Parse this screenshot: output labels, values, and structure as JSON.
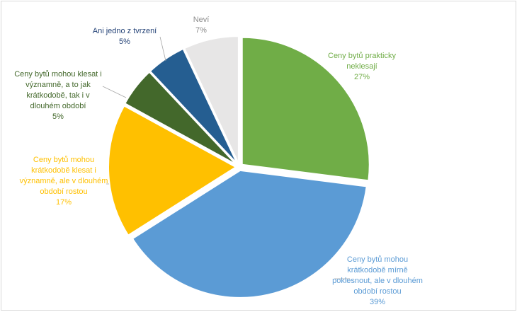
{
  "chart_data": {
    "type": "pie",
    "title": "",
    "slices": [
      {
        "label_lines": [
          "Ceny bytů prakticky",
          "neklesají"
        ],
        "pct_text": "27%",
        "value": 27,
        "color": "#70ad47",
        "label_color": "#70ad47"
      },
      {
        "label_lines": [
          "Ceny bytů mohou",
          "krátkodobě mírně",
          "poklesnout, ale v dlouhém",
          "období rostou"
        ],
        "pct_text": "39%",
        "value": 39,
        "color": "#5b9bd5",
        "label_color": "#5b9bd5"
      },
      {
        "label_lines": [
          "Ceny bytů mohou",
          "krátkodobě klesat i",
          "významně, ale v dlouhém",
          "období rostou"
        ],
        "pct_text": "17%",
        "value": 17,
        "color": "#ffc000",
        "label_color": "#ffc000"
      },
      {
        "label_lines": [
          "Ceny bytů mohou klesat i",
          "významně, a to jak",
          "krátkodobě, tak i v",
          "dlouhém období"
        ],
        "pct_text": "5%",
        "value": 5,
        "color": "#43682b",
        "label_color": "#43682b"
      },
      {
        "label_lines": [
          "Ani jedno z tvrzení"
        ],
        "pct_text": "5%",
        "value": 5,
        "color": "#255e91",
        "label_color": "#264478"
      },
      {
        "label_lines": [
          "Neví"
        ],
        "pct_text": "7%",
        "value": 7,
        "color": "#e7e6e6",
        "label_color": "#8c8c8c"
      }
    ]
  }
}
